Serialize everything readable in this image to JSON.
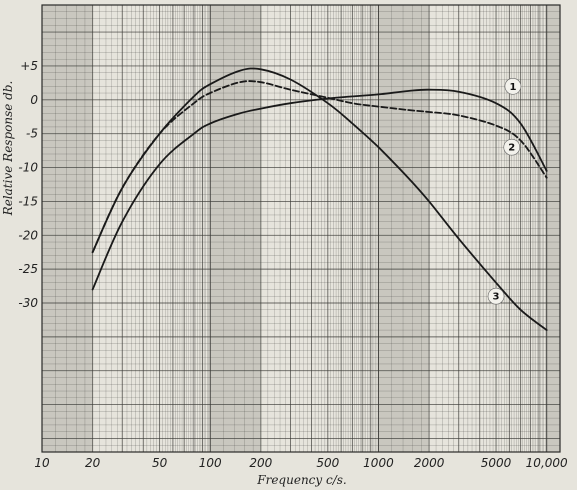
{
  "chart_data": {
    "type": "line",
    "title": "",
    "xlabel": "Frequency c/s.",
    "ylabel": "Relative Response db.",
    "x_scale": "log",
    "xlim": [
      10,
      12000
    ],
    "ylim": [
      -52,
      14
    ],
    "grid": true,
    "x_ticks": [
      {
        "value": 10,
        "label": "10"
      },
      {
        "value": 20,
        "label": "20"
      },
      {
        "value": 50,
        "label": "50"
      },
      {
        "value": 100,
        "label": "100"
      },
      {
        "value": 200,
        "label": "200"
      },
      {
        "value": 500,
        "label": "500"
      },
      {
        "value": 1000,
        "label": "1000"
      },
      {
        "value": 2000,
        "label": "2000"
      },
      {
        "value": 5000,
        "label": "5000"
      },
      {
        "value": 10000,
        "label": "10,000"
      }
    ],
    "y_ticks": [
      {
        "value": 5,
        "label": "+5"
      },
      {
        "value": 0,
        "label": "0"
      },
      {
        "value": -5,
        "label": "-5"
      },
      {
        "value": -10,
        "label": "-10"
      },
      {
        "value": -15,
        "label": "-15"
      },
      {
        "value": -20,
        "label": "-20"
      },
      {
        "value": -25,
        "label": "-25"
      },
      {
        "value": -30,
        "label": "-30"
      }
    ],
    "series": [
      {
        "name": "1",
        "style": "solid",
        "color": "#1a1a1a",
        "x": [
          20,
          30,
          50,
          80,
          100,
          150,
          200,
          300,
          500,
          700,
          1000,
          1500,
          2000,
          3000,
          5000,
          7000,
          10000
        ],
        "y": [
          -28,
          -18,
          -9.5,
          -5,
          -3.5,
          -2,
          -1.3,
          -0.5,
          0.2,
          0.5,
          0.8,
          1.3,
          1.5,
          1.2,
          -0.5,
          -3.5,
          -10.5
        ]
      },
      {
        "name": "2",
        "style": "dashed",
        "color": "#1a1a1a",
        "x": [
          20,
          30,
          50,
          80,
          100,
          150,
          200,
          300,
          500,
          700,
          1000,
          1500,
          2000,
          3000,
          5000,
          7000,
          10000
        ],
        "y": [
          -22.5,
          -13,
          -5,
          -0.5,
          1,
          2.6,
          2.6,
          1.5,
          0.3,
          -0.5,
          -1,
          -1.5,
          -1.8,
          -2.3,
          -3.8,
          -6,
          -11.5
        ]
      },
      {
        "name": "3",
        "style": "solid",
        "color": "#1a1a1a",
        "x": [
          20,
          30,
          50,
          80,
          100,
          150,
          200,
          300,
          500,
          700,
          1000,
          1500,
          2000,
          3000,
          5000,
          7000,
          10000
        ],
        "y": [
          -22.5,
          -13,
          -5,
          0.5,
          2.3,
          4.3,
          4.5,
          3,
          -0.5,
          -3.5,
          -7,
          -11.5,
          -15,
          -20.5,
          -27,
          -31,
          -34
        ]
      }
    ],
    "markers": [
      {
        "label": "1",
        "x": 6300,
        "y": 2
      },
      {
        "label": "2",
        "x": 6200,
        "y": -7
      },
      {
        "label": "3",
        "x": 5000,
        "y": -29
      }
    ]
  }
}
